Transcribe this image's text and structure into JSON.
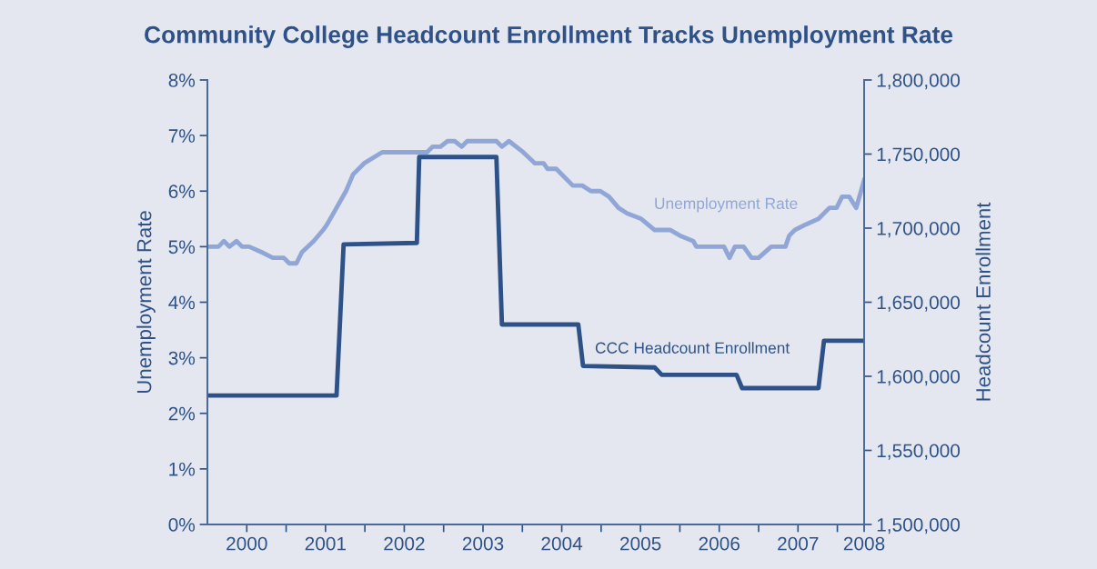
{
  "chart_data": {
    "type": "line",
    "title": "Community College Headcount Enrollment Tracks Unemployment Rate",
    "ylabel": "Unemployment Rate",
    "y2label": "Headcount Enrollment",
    "xlim": [
      2000,
      2008.34
    ],
    "xticks": [
      {
        "value": 2000.5,
        "label": "2000"
      },
      {
        "value": 2001,
        "label": null
      },
      {
        "value": 2001.5,
        "label": "2001"
      },
      {
        "value": 2002,
        "label": null
      },
      {
        "value": 2002.5,
        "label": "2002"
      },
      {
        "value": 2003,
        "label": null
      },
      {
        "value": 2003.5,
        "label": "2003"
      },
      {
        "value": 2004,
        "label": null
      },
      {
        "value": 2004.5,
        "label": "2004"
      },
      {
        "value": 2005,
        "label": null
      },
      {
        "value": 2005.5,
        "label": "2005"
      },
      {
        "value": 2006,
        "label": null
      },
      {
        "value": 2006.5,
        "label": "2006"
      },
      {
        "value": 2007,
        "label": null
      },
      {
        "value": 2007.5,
        "label": "2007"
      },
      {
        "value": 2008,
        "label": null
      },
      {
        "value": 2008.34,
        "label": "2008"
      }
    ],
    "ylim": [
      0,
      8
    ],
    "yticks": [
      {
        "value": 0,
        "label": "0%"
      },
      {
        "value": 1,
        "label": "1%"
      },
      {
        "value": 2,
        "label": "2%"
      },
      {
        "value": 3,
        "label": "3%"
      },
      {
        "value": 4,
        "label": "4%"
      },
      {
        "value": 5,
        "label": "5%"
      },
      {
        "value": 6,
        "label": "6%"
      },
      {
        "value": 7,
        "label": "7%"
      },
      {
        "value": 8,
        "label": "8%"
      }
    ],
    "y2lim": [
      1500000,
      1800000
    ],
    "y2ticks": [
      {
        "value": 1500000,
        "label": "1,500,000"
      },
      {
        "value": 1550000,
        "label": "1,550,000"
      },
      {
        "value": 1600000,
        "label": "1,600,000"
      },
      {
        "value": 1650000,
        "label": "1,650,000"
      },
      {
        "value": 1700000,
        "label": "1,700,000"
      },
      {
        "value": 1750000,
        "label": "1,750,000"
      },
      {
        "value": 1800000,
        "label": "1,800,000"
      }
    ],
    "grid": false,
    "legend": false,
    "marker": "none",
    "line_style": "solid",
    "series": [
      {
        "name": "Unemployment Rate",
        "color": "#8fa6d6",
        "axis": "y",
        "x": [
          2000.02,
          2000.14,
          2000.21,
          2000.28,
          2000.37,
          2000.44,
          2000.53,
          2000.69,
          2000.83,
          2000.97,
          2001.04,
          2001.13,
          2001.2,
          2001.35,
          2001.47,
          2001.52,
          2001.64,
          2001.76,
          2001.85,
          2001.99,
          2002.22,
          2002.45,
          2002.79,
          2002.86,
          2002.96,
          2003.05,
          2003.14,
          2003.23,
          2003.3,
          2003.49,
          2003.67,
          2003.74,
          2003.83,
          2004.01,
          2004.16,
          2004.27,
          2004.32,
          2004.43,
          2004.64,
          2004.76,
          2004.87,
          2004.99,
          2005.1,
          2005.22,
          2005.33,
          2005.51,
          2005.68,
          2005.88,
          2006.0,
          2006.17,
          2006.21,
          2006.35,
          2006.42,
          2006.49,
          2006.56,
          2006.63,
          2006.7,
          2006.81,
          2006.91,
          2007.0,
          2007.16,
          2007.34,
          2007.39,
          2007.46,
          2007.6,
          2007.76,
          2007.9,
          2007.99,
          2008.06,
          2008.15,
          2008.24,
          2008.34
        ],
        "values": [
          5.0,
          5.0,
          5.1,
          5.0,
          5.1,
          5.0,
          5.0,
          4.9,
          4.8,
          4.8,
          4.7,
          4.7,
          4.9,
          5.1,
          5.3,
          5.4,
          5.7,
          6.0,
          6.3,
          6.5,
          6.7,
          6.7,
          6.7,
          6.8,
          6.8,
          6.9,
          6.9,
          6.8,
          6.9,
          6.9,
          6.9,
          6.8,
          6.9,
          6.7,
          6.5,
          6.5,
          6.4,
          6.4,
          6.1,
          6.1,
          6.0,
          6.0,
          5.9,
          5.7,
          5.6,
          5.5,
          5.3,
          5.3,
          5.2,
          5.1,
          5.0,
          5.0,
          5.0,
          5.0,
          5.0,
          4.8,
          5.0,
          5.0,
          4.8,
          4.8,
          5.0,
          5.0,
          5.2,
          5.3,
          5.4,
          5.5,
          5.7,
          5.7,
          5.9,
          5.9,
          5.7,
          6.2
        ]
      },
      {
        "name": "CCC Headcount Enrollment",
        "color": "#2e5288",
        "axis": "y2",
        "x": [
          2000.02,
          2001.64,
          2001.73,
          2002.66,
          2002.69,
          2003.67,
          2003.74,
          2004.71,
          2004.77,
          2005.68,
          2005.77,
          2006.72,
          2006.79,
          2007.76,
          2007.83,
          2008.34
        ],
        "values": [
          1587000,
          1587000,
          1689000,
          1690000,
          1748000,
          1748000,
          1635000,
          1635000,
          1607000,
          1606000,
          1601000,
          1601000,
          1592000,
          1592000,
          1624000,
          1624000
        ]
      }
    ]
  }
}
